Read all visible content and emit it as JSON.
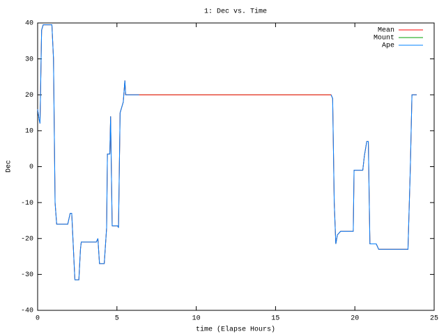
{
  "chart_data": {
    "type": "line",
    "title": "1: Dec vs. Time",
    "x_label": "time (Elapse Hours)",
    "y_label": "Dec",
    "x": [
      0,
      0.1,
      0.15,
      0.25,
      0.35,
      0.9,
      1.0,
      1.1,
      1.2,
      1.9,
      2.05,
      2.15,
      2.3,
      2.35,
      2.6,
      2.7,
      2.75,
      3.7,
      3.8,
      3.9,
      4.2,
      4.35,
      4.4,
      4.55,
      4.6,
      4.7,
      5.05,
      5.1,
      5.2,
      5.4,
      5.5,
      5.55,
      6.4,
      6.5,
      18.4,
      18.5,
      18.6,
      18.7,
      18.8,
      18.9,
      19.1,
      19.9,
      19.95,
      20.5,
      20.6,
      20.75,
      20.85,
      20.95,
      21.35,
      21.5,
      23.35,
      23.5,
      23.6,
      23.9
    ],
    "series": [
      {
        "name": "Mean",
        "color": "#ff0000",
        "values": [
          16,
          13,
          12,
          38,
          39.5,
          39.5,
          30,
          -10,
          -16,
          -16,
          -13,
          -13,
          -27,
          -31.5,
          -31.5,
          -23,
          -21,
          -21,
          -20,
          -27,
          -27,
          -17,
          3.5,
          3.5,
          14,
          -16.5,
          -16.5,
          -17,
          15,
          18,
          24,
          20,
          20,
          20,
          20,
          20,
          19,
          -10,
          -21.5,
          -19,
          -18,
          -18,
          -1,
          -1,
          3,
          7,
          7,
          -21.5,
          -21.5,
          -23,
          -23,
          0,
          20,
          20
        ]
      },
      {
        "name": "Mount",
        "color": "#00a000",
        "values": [
          16,
          13,
          12,
          38,
          39.5,
          39.5,
          30,
          -10,
          -16,
          -16,
          -13,
          -13,
          -27,
          -31.5,
          -31.5,
          -23,
          -21,
          -21,
          -20,
          -27,
          -27,
          -17,
          3.5,
          3.5,
          14,
          -16.5,
          -16.5,
          -17,
          15,
          18,
          24,
          20,
          20,
          20,
          20,
          20,
          19,
          -10,
          -21.5,
          -19,
          -18,
          -18,
          -1,
          -1,
          3,
          7,
          7,
          -21.5,
          -21.5,
          -23,
          -23,
          0,
          20,
          20
        ]
      },
      {
        "name": "Ape",
        "color": "#0080ff",
        "values": [
          16,
          13,
          12,
          38,
          39.5,
          39.5,
          30,
          -10,
          -16,
          -16,
          -13,
          -13,
          -27,
          -31.5,
          -31.5,
          -23,
          -21,
          -21,
          -20,
          -27,
          -27,
          -17,
          3.5,
          3.5,
          14,
          -16.5,
          -16.5,
          -17,
          15,
          18,
          24,
          20,
          20,
          null,
          null,
          20,
          19,
          -10,
          -21.5,
          -19,
          -18,
          -18,
          -1,
          -1,
          3,
          7,
          7,
          -21.5,
          -21.5,
          -23,
          -23,
          0,
          20,
          20
        ]
      }
    ],
    "xlim": [
      0,
      25
    ],
    "xticks": [
      0,
      5,
      10,
      15,
      20,
      25
    ],
    "ylim": [
      -40,
      40
    ],
    "yticks": [
      -40,
      -30,
      -20,
      -10,
      0,
      10,
      20,
      30,
      40
    ],
    "legend": "top-right"
  }
}
